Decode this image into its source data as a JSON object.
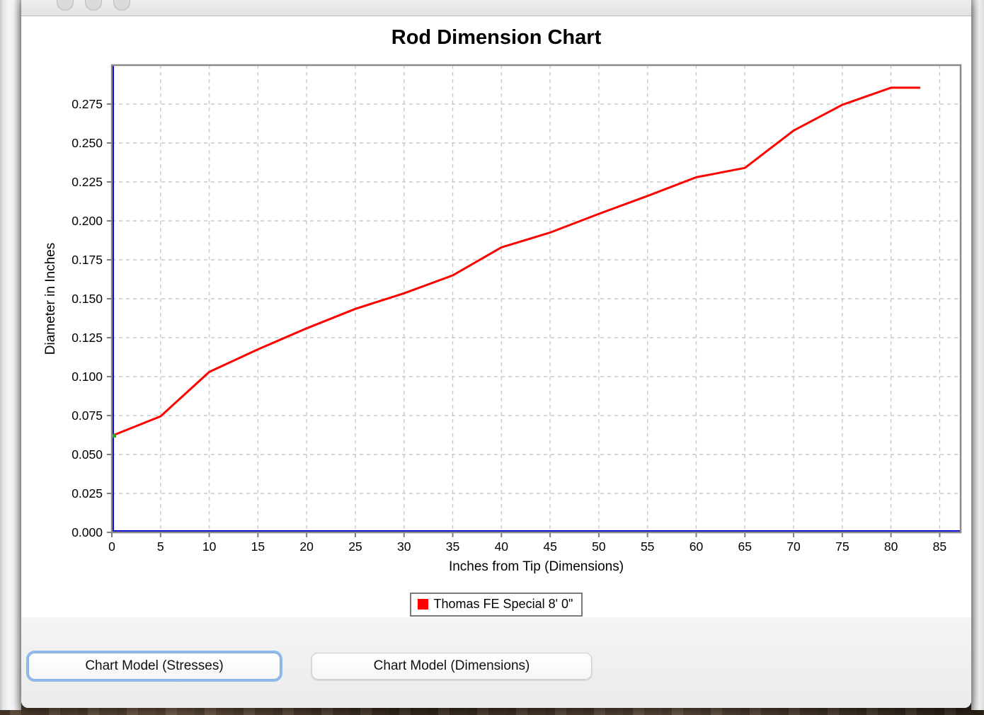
{
  "window": {
    "titlebar_buttons": [
      "close",
      "minimize",
      "zoom"
    ]
  },
  "chart_data": {
    "type": "line",
    "title": "Rod Dimension Chart",
    "xlabel": "Inches from Tip (Dimensions)",
    "ylabel": "Diameter in Inches",
    "xlim": [
      0,
      87.15
    ],
    "ylim": [
      0,
      0.3
    ],
    "x_ticks": [
      0,
      5,
      10,
      15,
      20,
      25,
      30,
      35,
      40,
      45,
      50,
      55,
      60,
      65,
      70,
      75,
      80,
      85
    ],
    "y_ticks": [
      0.0,
      0.025,
      0.05,
      0.075,
      0.1,
      0.125,
      0.15,
      0.175,
      0.2,
      0.225,
      0.25,
      0.275
    ],
    "y_tick_decimals": 3,
    "grid": {
      "show": true,
      "style": "dashed",
      "color": "#c9c9c9"
    },
    "plot_border_color": "#8a8a8a",
    "tick_mark_color": "#7f7f7f",
    "zero_baseline_color": "#0000e0",
    "series": [
      {
        "name": "Thomas FE Special 8' 0\"",
        "color": "#ff0000",
        "points": [
          [
            0,
            0.062
          ],
          [
            5,
            0.0745
          ],
          [
            10,
            0.103
          ],
          [
            15,
            0.1175
          ],
          [
            20,
            0.131
          ],
          [
            25,
            0.1435
          ],
          [
            30,
            0.1535
          ],
          [
            35,
            0.165
          ],
          [
            40,
            0.183
          ],
          [
            45,
            0.1925
          ],
          [
            50,
            0.2045
          ],
          [
            55,
            0.216
          ],
          [
            60,
            0.228
          ],
          [
            65,
            0.234
          ],
          [
            70,
            0.258
          ],
          [
            75,
            0.2745
          ],
          [
            80,
            0.2855
          ],
          [
            83,
            0.2855
          ]
        ]
      }
    ],
    "start_marker": {
      "x": 0,
      "y": 0.062,
      "color": "#1faa1f"
    },
    "legend": {
      "position": "bottom",
      "entries": [
        {
          "label": "Thomas FE Special 8' 0\"",
          "color": "#ff0000"
        }
      ]
    }
  },
  "buttons": [
    {
      "label": "Chart Model (Stresses)",
      "focused": true
    },
    {
      "label": "Chart Model (Dimensions)",
      "focused": false
    }
  ]
}
